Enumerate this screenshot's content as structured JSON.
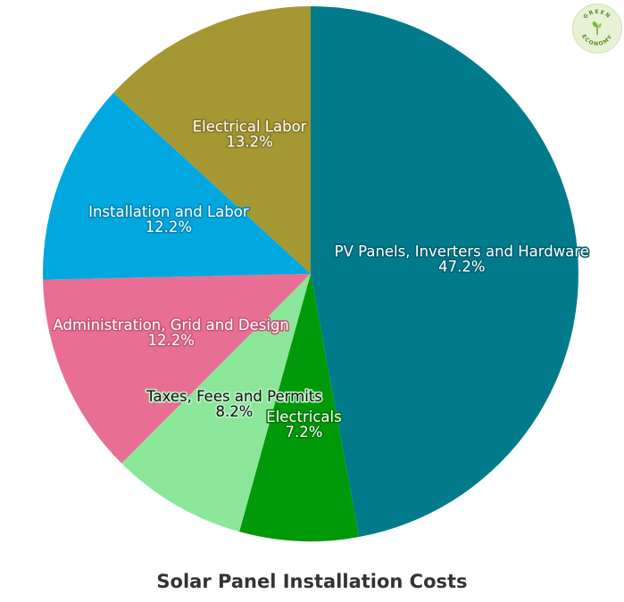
{
  "chart_data": {
    "type": "pie",
    "title": "Solar Panel Installation Costs",
    "slices": [
      {
        "label": "PV Panels, Inverters and Hardware",
        "value": 47.2,
        "display": "47.2%",
        "color": "#017b8c",
        "text_color": "#ffffff",
        "stroke_color": "#015f6d"
      },
      {
        "label": "Electricals",
        "value": 7.2,
        "display": "7.2%",
        "color": "#00990a",
        "text_color": "#ffffff",
        "stroke_color": "#007a08"
      },
      {
        "label": "Taxes, Fees and Permits",
        "value": 8.2,
        "display": "8.2%",
        "color": "#8ae79a",
        "text_color": "#111111",
        "stroke_color": "#bff0c8"
      },
      {
        "label": "Administration, Grid and Design",
        "value": 12.2,
        "display": "12.2%",
        "color": "#e96e93",
        "text_color": "#ffffff",
        "stroke_color": "#c95778"
      },
      {
        "label": "Installation and Labor",
        "value": 12.2,
        "display": "12.2%",
        "color": "#00a8df",
        "text_color": "#ffffff",
        "stroke_color": "#0088b6"
      },
      {
        "label": "Electrical Labor",
        "value": 13.2,
        "display": "13.2%",
        "color": "#a59731",
        "text_color": "#ffffff",
        "stroke_color": "#857a27"
      }
    ]
  },
  "logo": {
    "text_top": "GREEN",
    "text_bottom": "ECONOMY"
  }
}
